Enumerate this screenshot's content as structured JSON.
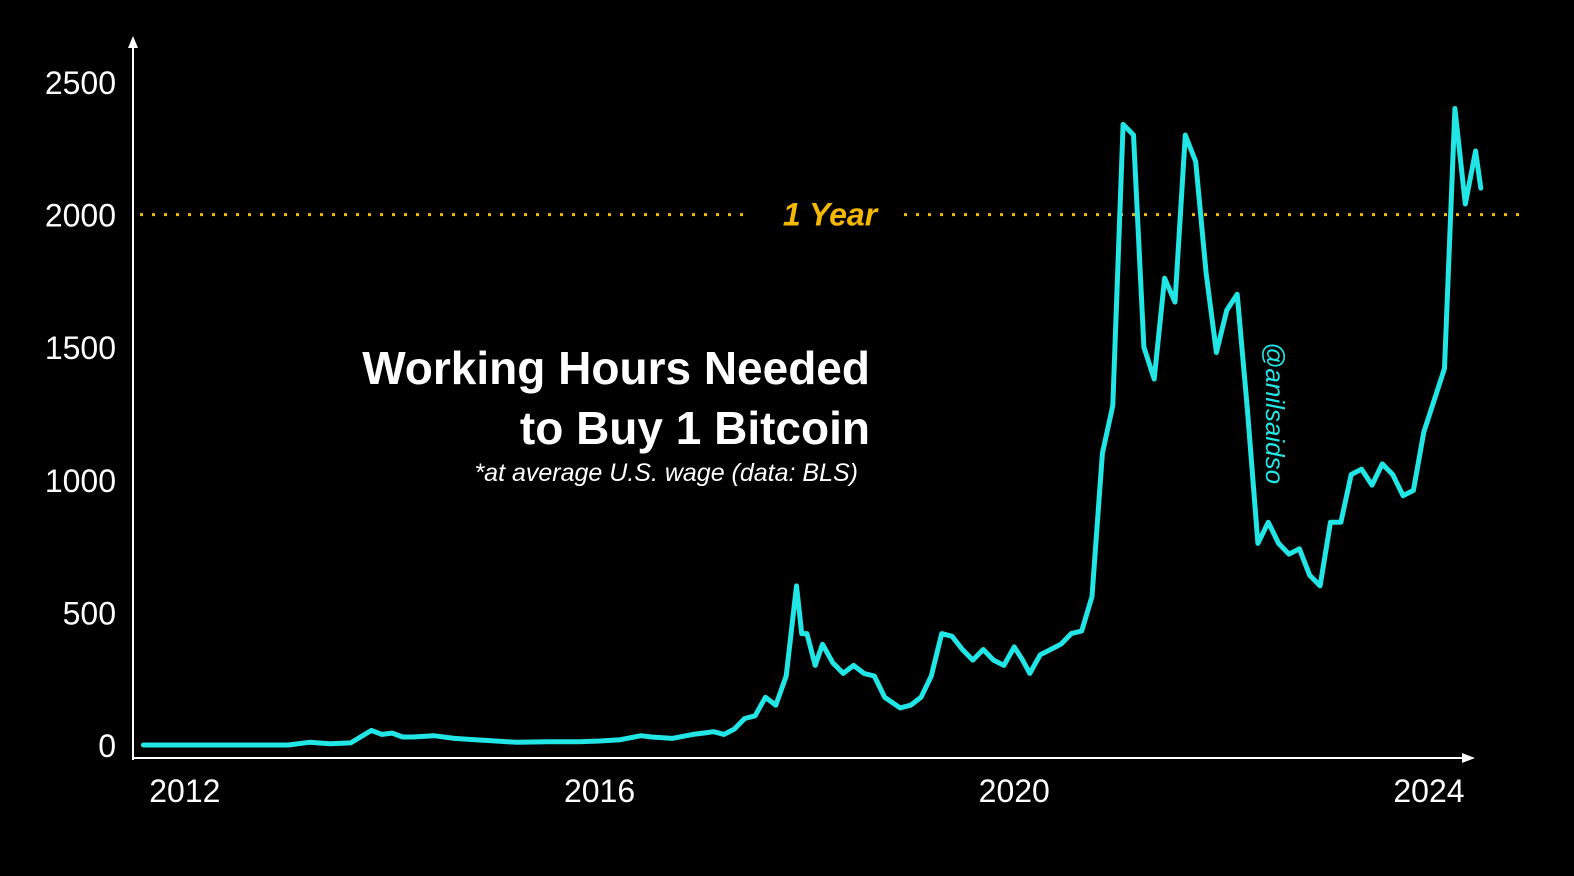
{
  "chart_data": {
    "type": "line",
    "title": "Working Hours Needed",
    "title_line2": "to Buy 1 Bitcoin",
    "subtitle": "*at average U.S. wage (data: BLS)",
    "credit": "@anilsaidso",
    "xlabel": "",
    "ylabel": "",
    "xlim": [
      2011.5,
      2024.55
    ],
    "ylim": [
      0,
      2500
    ],
    "grid": false,
    "x_ticks": [
      "2012",
      "2016",
      "2020",
      "2024"
    ],
    "y_ticks": [
      "0",
      "500",
      "1000",
      "1500",
      "2000",
      "2500"
    ],
    "reference_line": {
      "value": 2000,
      "label": "1 Year",
      "color": "#f5b800"
    },
    "series_color": "#22e5e5",
    "axis_color": "#ffffff",
    "series": [
      {
        "x": [
          2011.6,
          2013.0,
          2013.2,
          2013.4,
          2013.6,
          2013.8,
          2013.9,
          2014.0,
          2014.1,
          2014.2,
          2014.4,
          2014.6,
          2014.8,
          2015.0,
          2015.2,
          2015.5,
          2015.8,
          2016.0,
          2016.2,
          2016.4,
          2016.5,
          2016.7,
          2016.9,
          2017.0,
          2017.1,
          2017.2,
          2017.3,
          2017.4,
          2017.5,
          2017.6,
          2017.7,
          2017.8,
          2017.9,
          2017.95,
          2018.0,
          2018.08,
          2018.15,
          2018.25,
          2018.35,
          2018.45,
          2018.55,
          2018.65,
          2018.75,
          2018.9,
          2019.0,
          2019.1,
          2019.2,
          2019.3,
          2019.4,
          2019.5,
          2019.6,
          2019.7,
          2019.8,
          2019.9,
          2020.0,
          2020.08,
          2020.15,
          2020.25,
          2020.35,
          2020.45,
          2020.55,
          2020.65,
          2020.75,
          2020.85,
          2020.95,
          2021.05,
          2021.15,
          2021.25,
          2021.35,
          2021.45,
          2021.55,
          2021.65,
          2021.75,
          2021.85,
          2021.95,
          2022.05,
          2022.15,
          2022.25,
          2022.35,
          2022.45,
          2022.55,
          2022.65,
          2022.75,
          2022.85,
          2022.95,
          2023.05,
          2023.15,
          2023.25,
          2023.35,
          2023.45,
          2023.55,
          2023.65,
          2023.75,
          2023.85,
          2023.95,
          2024.05,
          2024.15,
          2024.25,
          2024.35,
          2024.45,
          2024.5
        ],
        "y": [
          0,
          0,
          10,
          5,
          8,
          55,
          40,
          45,
          30,
          30,
          35,
          25,
          20,
          15,
          10,
          12,
          12,
          15,
          20,
          35,
          30,
          25,
          40,
          45,
          50,
          40,
          60,
          100,
          110,
          180,
          150,
          260,
          600,
          420,
          420,
          300,
          380,
          310,
          270,
          300,
          270,
          260,
          180,
          140,
          150,
          180,
          260,
          420,
          410,
          360,
          320,
          360,
          320,
          300,
          370,
          320,
          270,
          340,
          360,
          380,
          420,
          430,
          560,
          1100,
          1280,
          2340,
          2300,
          1500,
          1380,
          1760,
          1670,
          2300,
          2200,
          1780,
          1480,
          1640,
          1700,
          1260,
          760,
          840,
          760,
          720,
          740,
          640,
          600,
          840,
          840,
          1020,
          1040,
          980,
          1060,
          1020,
          940,
          960,
          1180,
          1300,
          1420,
          2400,
          2040,
          2240,
          2100
        ]
      }
    ]
  }
}
